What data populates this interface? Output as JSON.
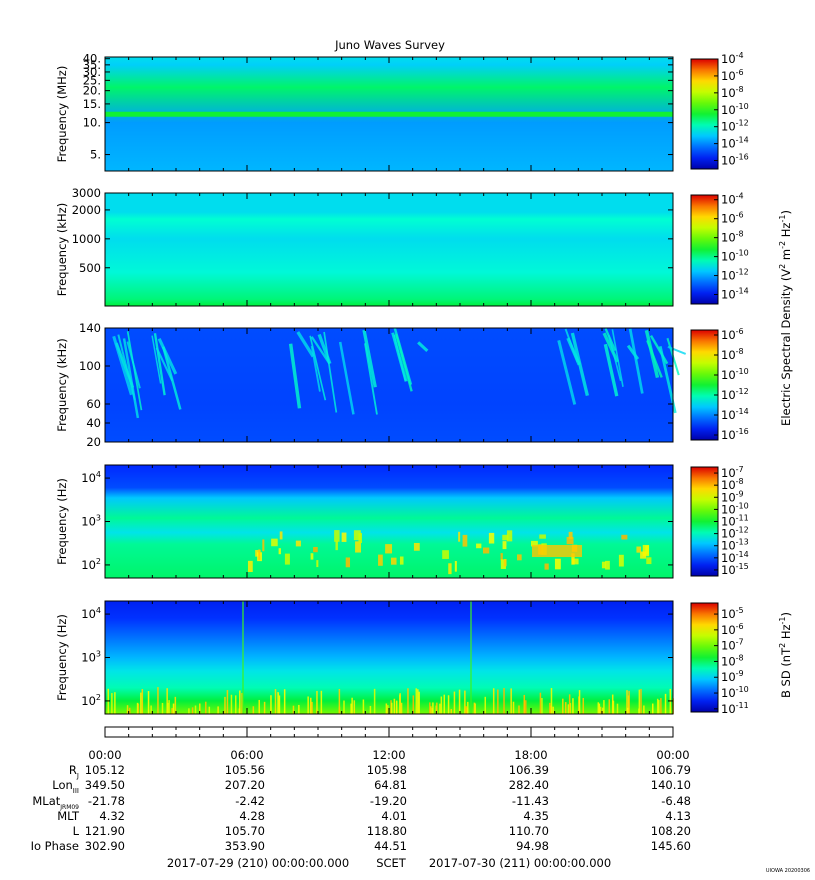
{
  "chart_data": {
    "type": "heatmap",
    "title": "Juno Waves Survey",
    "time_range": {
      "start": "2017-07-29 (210) 00:00:00.000",
      "label": "SCET",
      "end": "2017-07-30 (211) 00:00:00.000"
    },
    "time_ticks": [
      "00:00",
      "06:00",
      "12:00",
      "18:00",
      "00:00"
    ],
    "panels": [
      {
        "ylabel": "Frequency (MHz)",
        "y_ticks": [
          "40.",
          "35.",
          "30.",
          "25.",
          "20.",
          "15.",
          "10.",
          "5."
        ],
        "y_range": [
          3.5,
          41.5
        ],
        "colorbar_ticks": [
          "10-4",
          "10-6",
          "10-8",
          "10-10",
          "10-12",
          "10-14",
          "10-16"
        ],
        "colorbar_range": [
          -17,
          -4
        ],
        "bands": [
          [
            2.5,
            0.28,
            0.1
          ],
          [
            10.0,
            0.25,
            0.1
          ],
          [
            21.5,
            0.45,
            0.12
          ],
          [
            35.0,
            0.31,
            0.15
          ],
          [
            41.0,
            0.33,
            0.1
          ]
        ]
      },
      {
        "ylabel": "Frequency (kHz)",
        "y_ticks": [
          "3000",
          "2000",
          "1000",
          "500"
        ],
        "y_range": [
          200,
          3000
        ],
        "colorbar_ticks": [
          "10-4",
          "10-6",
          "10-8",
          "10-10",
          "10-12",
          "10-14"
        ],
        "colorbar_range": [
          -15,
          -3.5
        ],
        "bands": [
          [
            200,
            0.48,
            0.06
          ],
          [
            235,
            0.44,
            0.12
          ],
          [
            450,
            0.37,
            0.25
          ],
          [
            1000,
            0.33,
            0.25
          ],
          [
            1600,
            0.38,
            0.08
          ],
          [
            1900,
            0.33,
            0.1
          ],
          [
            3000,
            0.33,
            0.1
          ]
        ]
      },
      {
        "ylabel": "Frequency (kHz)",
        "y_ticks": [
          "140",
          "100",
          "60",
          "40",
          "20"
        ],
        "y_range": [
          20,
          140
        ],
        "colorbar_ticks": [
          "10-6",
          "10-8",
          "10-10",
          "10-12",
          "10-14",
          "10-16"
        ],
        "colorbar_range": [
          -16.5,
          -5.5
        ],
        "bands": [
          [
            20,
            0.16,
            0.1
          ],
          [
            60,
            0.15,
            0.12
          ],
          [
            140,
            0.16,
            0.12
          ]
        ]
      },
      {
        "ylabel": "Frequency (Hz)",
        "y_ticks": [
          "104",
          "103",
          "102"
        ],
        "y_range": [
          50,
          20000
        ],
        "colorbar_ticks": [
          "10-7",
          "10-8",
          "10-9",
          "10-10",
          "10-11",
          "10-12",
          "10-13",
          "10-14",
          "10-15"
        ],
        "colorbar_range": [
          -15.5,
          -6.5
        ],
        "bands": [
          [
            50,
            0.45,
            0.18
          ],
          [
            300,
            0.42,
            0.16
          ],
          [
            560,
            0.34,
            0.12
          ],
          [
            1200,
            0.42,
            0.14
          ],
          [
            3500,
            0.3,
            0.1
          ],
          [
            6000,
            0.16,
            0.06
          ],
          [
            20000,
            0.12,
            0.05
          ]
        ]
      },
      {
        "ylabel": "Frequency (Hz)",
        "y_ticks": [
          "104",
          "103",
          "102"
        ],
        "y_range": [
          50,
          20000
        ],
        "colorbar_ticks": [
          "10-5",
          "10-6",
          "10-7",
          "10-8",
          "10-9",
          "10-10",
          "10-11"
        ],
        "colorbar_range": [
          -11.2,
          -4.3
        ],
        "bands": [
          [
            50,
            0.62,
            0.2
          ],
          [
            100,
            0.48,
            0.16
          ],
          [
            200,
            0.4,
            0.12
          ],
          [
            500,
            0.34,
            0.1
          ],
          [
            1000,
            0.28,
            0.08
          ],
          [
            3000,
            0.2,
            0.06
          ],
          [
            8000,
            0.13,
            0.05
          ],
          [
            20000,
            0.1,
            0.04
          ]
        ]
      }
    ],
    "colorbar_labels": {
      "electric": "Electric Spectral Density (V2 m-2 Hz-1)",
      "magnetic": "B SD (nT2 Hz-1)"
    },
    "ephemeris": [
      {
        "label": "RJ",
        "values": [
          "105.12",
          "105.56",
          "105.98",
          "106.39",
          "106.79"
        ]
      },
      {
        "label": "LonIII",
        "values": [
          "349.50",
          "207.20",
          "64.81",
          "282.40",
          "140.10"
        ]
      },
      {
        "label": "MLatJRM09",
        "values": [
          "-21.78",
          "-2.42",
          "-19.20",
          "-11.43",
          "-6.48"
        ]
      },
      {
        "label": "MLT",
        "values": [
          "4.32",
          "4.28",
          "4.01",
          "4.35",
          "4.13"
        ]
      },
      {
        "label": "L",
        "values": [
          "121.90",
          "105.70",
          "118.80",
          "110.70",
          "108.20"
        ]
      },
      {
        "label": "Io Phase",
        "values": [
          "302.90",
          "353.90",
          "44.51",
          "94.98",
          "145.60"
        ]
      }
    ],
    "footer_tag": "UIOWA 20200306"
  }
}
